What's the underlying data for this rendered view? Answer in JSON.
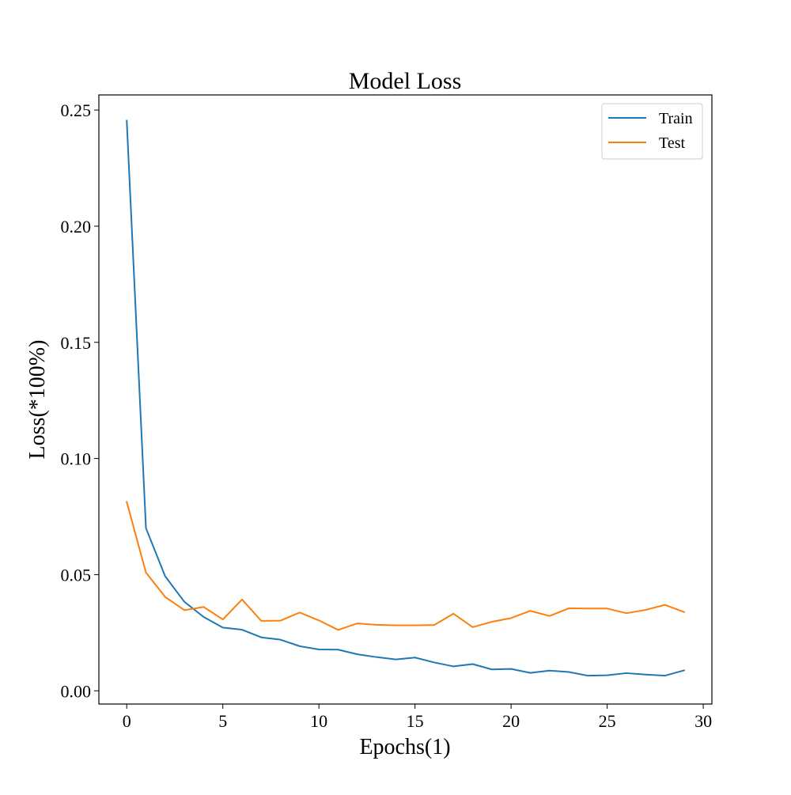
{
  "chart_data": {
    "type": "line",
    "title": "Model Loss",
    "xlabel": "Epochs(1)",
    "ylabel": "Loss(*100%)",
    "xlim": [
      -1.45,
      30.45
    ],
    "ylim": [
      -0.0057,
      0.2565
    ],
    "xticks": [
      0,
      5,
      10,
      15,
      20,
      25,
      30
    ],
    "xtick_labels": [
      "0",
      "5",
      "10",
      "15",
      "20",
      "25",
      "30"
    ],
    "yticks": [
      0.0,
      0.05,
      0.1,
      0.15,
      0.2,
      0.25
    ],
    "ytick_labels": [
      "0.00",
      "0.05",
      "0.10",
      "0.15",
      "0.20",
      "0.25"
    ],
    "grid": false,
    "legend_position": "top-right",
    "x": [
      0,
      1,
      2,
      3,
      4,
      5,
      6,
      7,
      8,
      9,
      10,
      11,
      12,
      13,
      14,
      15,
      16,
      17,
      18,
      19,
      20,
      21,
      22,
      23,
      24,
      25,
      26,
      27,
      28,
      29
    ],
    "series": [
      {
        "name": "Train",
        "color": "#1f77b4",
        "values": [
          0.2454,
          0.07,
          0.0493,
          0.0383,
          0.0318,
          0.0272,
          0.0263,
          0.023,
          0.022,
          0.0192,
          0.0178,
          0.0177,
          0.0157,
          0.0145,
          0.0135,
          0.0143,
          0.0122,
          0.0105,
          0.0115,
          0.0092,
          0.0094,
          0.0077,
          0.0087,
          0.0081,
          0.0065,
          0.0067,
          0.0076,
          0.007,
          0.0065,
          0.0088
        ]
      },
      {
        "name": "Test",
        "color": "#ff7f0e",
        "values": [
          0.0813,
          0.0509,
          0.0404,
          0.0347,
          0.0361,
          0.0307,
          0.0393,
          0.0301,
          0.0302,
          0.0337,
          0.0303,
          0.0262,
          0.029,
          0.0284,
          0.0282,
          0.0282,
          0.0283,
          0.0332,
          0.0274,
          0.0297,
          0.0313,
          0.0344,
          0.0322,
          0.0355,
          0.0354,
          0.0354,
          0.0334,
          0.0348,
          0.037,
          0.0339
        ]
      }
    ]
  }
}
